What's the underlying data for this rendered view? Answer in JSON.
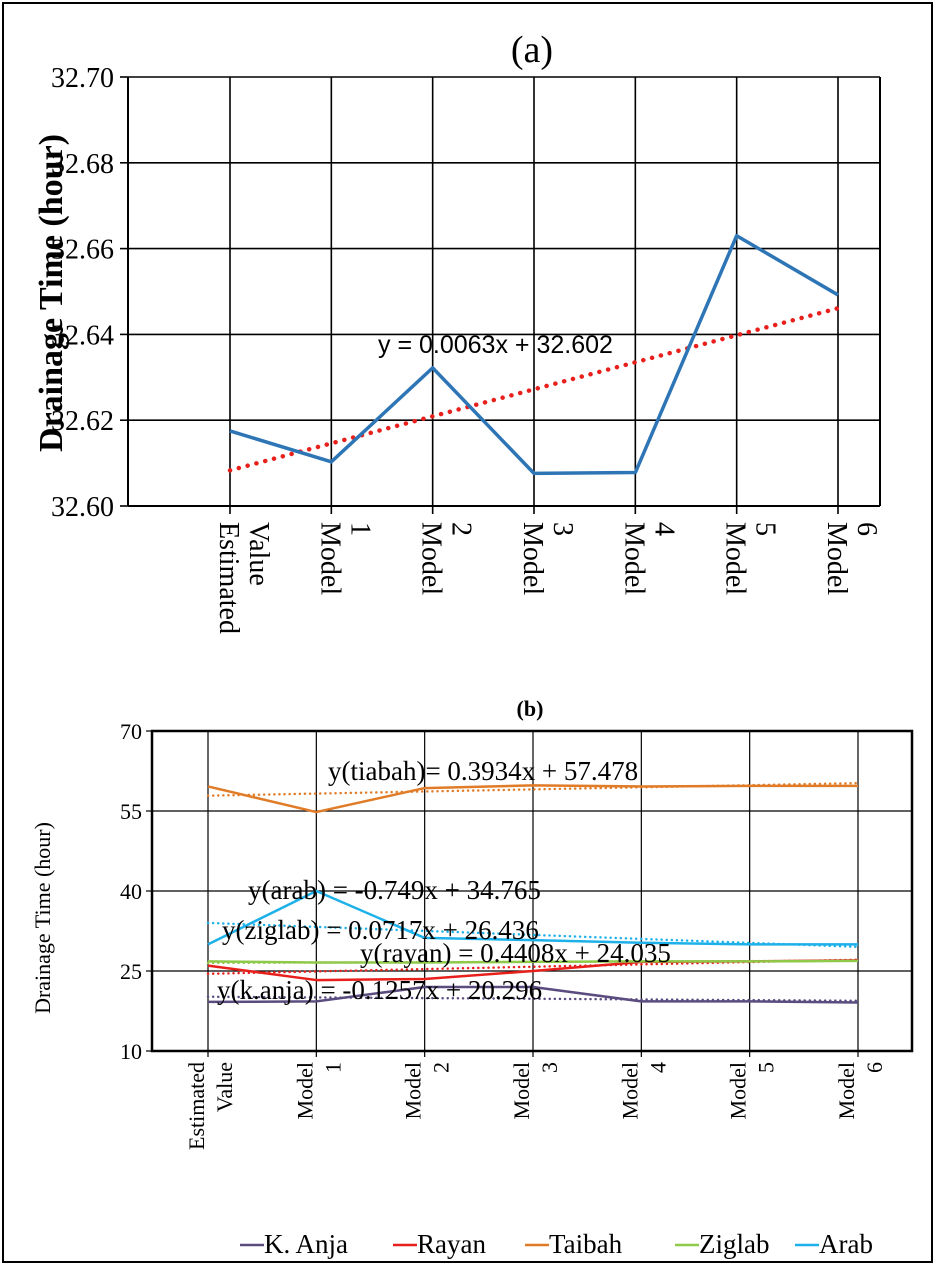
{
  "chart_data": [
    {
      "type": "line",
      "title": "(a)",
      "ylabel": "Drainage Time (hour)",
      "xlabel": "",
      "ylim": [
        32.6,
        32.7
      ],
      "yticks": [
        "32.60",
        "32.62",
        "32.64",
        "32.66",
        "32.68",
        "32.70"
      ],
      "categories": [
        [
          "Estimated",
          "Value"
        ],
        [
          "Model",
          "1"
        ],
        [
          "Model",
          "2"
        ],
        [
          "Model",
          "3"
        ],
        [
          "Model",
          "4"
        ],
        [
          "Model",
          "5"
        ],
        [
          "Model",
          "6"
        ]
      ],
      "grid": true,
      "series": [
        {
          "values": [
            32.6175,
            32.6103,
            32.6322,
            32.6076,
            32.6078,
            32.663,
            32.6492
          ],
          "color": "#2e75b6"
        }
      ],
      "trendline": {
        "label": "y = 0.0063x + 32.602",
        "slope": 0.0063,
        "intercept": 32.602,
        "color": "#e8201c"
      }
    },
    {
      "type": "line",
      "title": "(b)",
      "ylabel": "Drainage Time (hour)",
      "xlabel": "",
      "ylim": [
        10,
        70
      ],
      "yticks": [
        "10",
        "25",
        "40",
        "55",
        "70"
      ],
      "categories": [
        [
          "Estimated",
          "Value"
        ],
        [
          "Model",
          "1"
        ],
        [
          "Model",
          "2"
        ],
        [
          "Model",
          "3"
        ],
        [
          "Model",
          "4"
        ],
        [
          "Model",
          "5"
        ],
        [
          "Model",
          "6"
        ]
      ],
      "grid": true,
      "legend": "bottom",
      "series": [
        {
          "name": "K. Anja",
          "values": [
            19.2,
            19.3,
            22.0,
            22.0,
            19.3,
            19.3,
            19.1
          ],
          "color": "#5b4c80",
          "trend": {
            "slope": -0.1257,
            "intercept": 20.296,
            "label": "y(k.anja) = -0.1257x + 20.296"
          }
        },
        {
          "name": "Rayan",
          "values": [
            26.0,
            23.3,
            23.5,
            25.0,
            26.7,
            26.8,
            27.0
          ],
          "color": "#e8201c",
          "trend": {
            "slope": 0.4408,
            "intercept": 24.035,
            "label": "y(rayan) = 0.4408x + 24.035"
          }
        },
        {
          "name": "Taibah",
          "values": [
            59.6,
            54.8,
            59.3,
            59.8,
            59.6,
            59.7,
            59.7
          ],
          "color": "#e07b28",
          "trend": {
            "slope": 0.3934,
            "intercept": 57.478,
            "label": "y(tiabah)= 0.3934x + 57.478"
          }
        },
        {
          "name": "Ziglab",
          "values": [
            26.8,
            26.6,
            26.6,
            26.7,
            26.8,
            26.8,
            26.9
          ],
          "color": "#8fc94a",
          "trend": {
            "slope": 0.0717,
            "intercept": 26.436,
            "label": "y(ziglab) = 0.0717x + 26.436"
          }
        },
        {
          "name": "Arab",
          "values": [
            30.0,
            40.0,
            31.2,
            30.8,
            30.3,
            30.0,
            30.0
          ],
          "color": "#1eb1e9",
          "trend": {
            "slope": -0.749,
            "intercept": 34.765,
            "label": "y(arab) = -0.749x + 34.765"
          }
        }
      ]
    }
  ]
}
